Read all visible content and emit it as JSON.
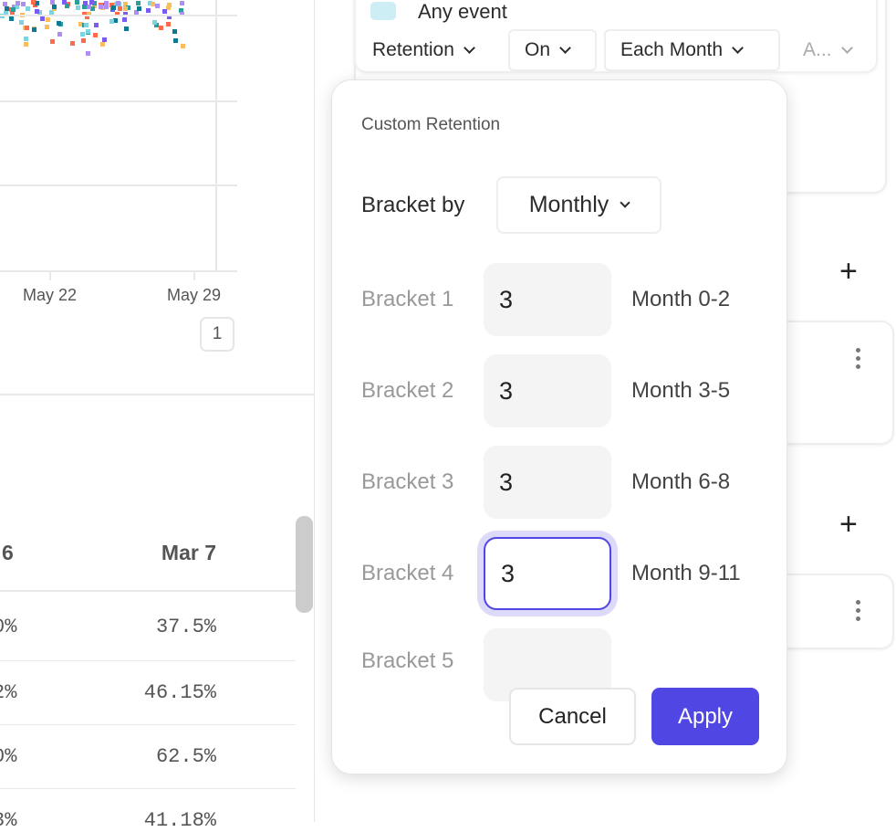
{
  "chart": {
    "x_ticks": [
      "May 22",
      "May 29"
    ],
    "page": "1"
  },
  "table": {
    "header_partial": "6",
    "header": "Mar 7",
    "left_partial": [
      "0%",
      "2%",
      "0%",
      "3%"
    ],
    "values": [
      "37.5%",
      "46.15%",
      "62.5%",
      "41.18%"
    ]
  },
  "query": {
    "event_label": "Any event",
    "retention": "Retention",
    "on": "On",
    "each_month": "Each Month",
    "more": "A..."
  },
  "popover": {
    "title": "Custom Retention",
    "bracket_by_label": "Bracket by",
    "bracket_by_value": "Monthly",
    "brackets": [
      {
        "label": "Bracket 1",
        "value": "3",
        "range": "Month 0-2"
      },
      {
        "label": "Bracket 2",
        "value": "3",
        "range": "Month 3-5"
      },
      {
        "label": "Bracket 3",
        "value": "3",
        "range": "Month 6-8"
      },
      {
        "label": "Bracket 4",
        "value": "3",
        "range": "Month 9-11"
      },
      {
        "label": "Bracket 5",
        "value": "",
        "range": ""
      }
    ],
    "cancel": "Cancel",
    "apply": "Apply"
  },
  "colors": {
    "accent": "#5046e4",
    "focus_ring": "#dcdaf8"
  }
}
